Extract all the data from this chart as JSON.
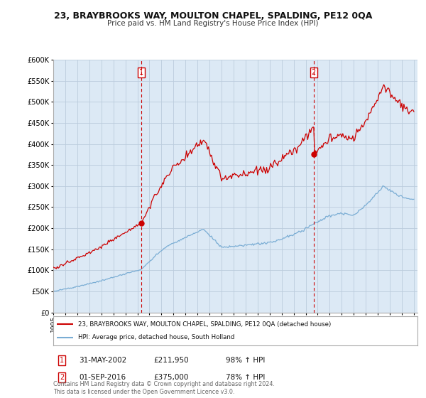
{
  "title": "23, BRAYBROOKS WAY, MOULTON CHAPEL, SPALDING, PE12 0QA",
  "subtitle": "Price paid vs. HM Land Registry's House Price Index (HPI)",
  "red_label": "23, BRAYBROOKS WAY, MOULTON CHAPEL, SPALDING, PE12 0QA (detached house)",
  "blue_label": "HPI: Average price, detached house, South Holland",
  "sale1_date": "31-MAY-2002",
  "sale1_price": "£211,950",
  "sale1_hpi": "98% ↑ HPI",
  "sale2_date": "01-SEP-2016",
  "sale2_price": "£375,000",
  "sale2_hpi": "78% ↑ HPI",
  "footer": "Contains HM Land Registry data © Crown copyright and database right 2024.\nThis data is licensed under the Open Government Licence v3.0.",
  "red_color": "#cc0000",
  "blue_color": "#7aadd4",
  "bg_fill": "#dce9f5",
  "background_color": "#ffffff",
  "grid_color": "#bbccdd",
  "sale1_t": 2002.333,
  "sale2_t": 2016.667,
  "sale1_val": 211950,
  "sale2_val": 375000
}
